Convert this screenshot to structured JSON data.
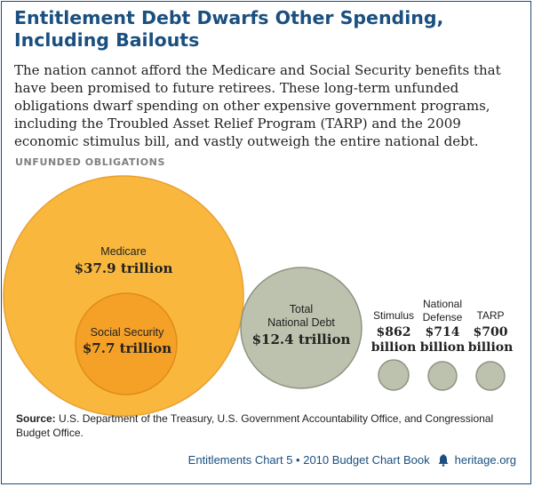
{
  "title": {
    "line1": "Entitlement Debt Dwarfs Other Spending,",
    "line2": "Including Bailouts"
  },
  "intro": [
    "The nation cannot afford the Medicare and Social Security benefits that",
    "have been promised to future retirees. These long-term unfunded",
    "obligations dwarf spending on other expensive government programs,",
    "including the Troubled Asset Relief Program (TARP) and the 2009",
    "economic stimulus bill, and vastly outweigh the entire national debt."
  ],
  "subhead": "UNFUNDED OBLIGATIONS",
  "chart_data": {
    "type": "bubble",
    "unit": "$ billion",
    "items": [
      {
        "name": "Medicare",
        "value_label": "$37.9 trillion",
        "value": 37900,
        "color": "#f9b83d"
      },
      {
        "name": "Social Security",
        "value_label": "$7.7 trillion",
        "value": 7700,
        "color": "#f5a026",
        "nested_in": "Medicare"
      },
      {
        "name": "Total National Debt",
        "value_label": "$12.4 trillion",
        "value": 12400,
        "color": "#bcc2ad"
      },
      {
        "name": "Stimulus",
        "value_label": "$862 billion",
        "value": 862,
        "color": "#bcc2ad"
      },
      {
        "name": "National Defense",
        "value_label": "$714 billion",
        "value": 714,
        "color": "#bcc2ad"
      },
      {
        "name": "TARP",
        "value_label": "$700 billion",
        "value": 700,
        "color": "#bcc2ad"
      }
    ],
    "labels": {
      "medicare": [
        "Medicare",
        "$37.9 trillion"
      ],
      "social_security": [
        "Social Security",
        "$7.7 trillion"
      ],
      "debt": [
        "Total",
        "National Debt",
        "$12.4 trillion"
      ],
      "stimulus": [
        "Stimulus",
        "$862",
        "billion"
      ],
      "defense": [
        "National",
        "Defense",
        "$714",
        "billion"
      ],
      "tarp": [
        "TARP",
        "$700",
        "billion"
      ]
    }
  },
  "source": {
    "label": "Source:",
    "text": " U.S. Department of the Treasury, U.S. Government Accountability Office, and Congressional Budget Office."
  },
  "footer": {
    "text": "Entitlements Chart 5 • 2010 Budget Chart Book",
    "site": "heritage.org"
  },
  "colors": {
    "title": "#1a4f7f",
    "medicare": "#f9b83d",
    "social_security": "#f5a026",
    "gray_circle": "#bcc2ad",
    "gray_stroke": "#8e9482"
  }
}
